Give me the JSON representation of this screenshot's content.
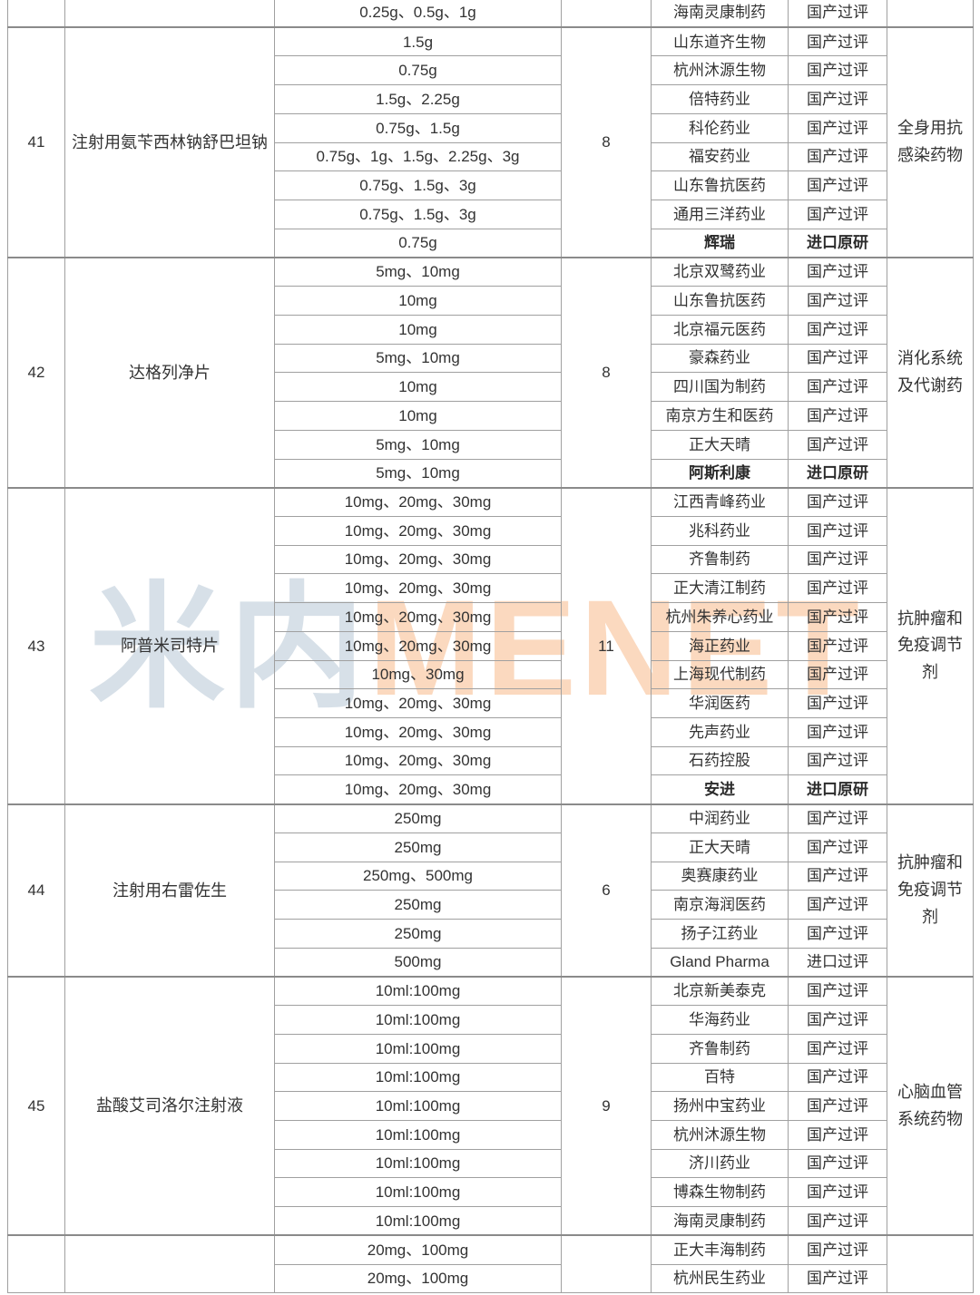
{
  "watermark": {
    "cn": "米内",
    "en": "MENET"
  },
  "colors": {
    "text": "#333333",
    "grid_line": "#a0a0a0",
    "section_line": "#8a8a8a",
    "watermark_cn": "#d7e0e8",
    "watermark_en": "#fbd9bf"
  },
  "chart_data": {
    "type": "table",
    "notes": "Cropped drug evaluation table; header row not visible. Columns: row number, drug name, specification, approved-company count, company, approval type, drug category.",
    "status_values": [
      "国产过评",
      "进口原研",
      "进口过评"
    ],
    "sections": [
      {
        "number": "",
        "drug": "",
        "count": "",
        "category": "",
        "partial": "top",
        "rows": [
          {
            "spec": "0.25g、0.5g、1g",
            "company": "海南灵康制药",
            "status": "国产过评"
          }
        ]
      },
      {
        "number": "41",
        "drug": "注射用氨苄西林钠舒巴坦钠",
        "count": "8",
        "category": "全身用抗感染药物",
        "rows": [
          {
            "spec": "1.5g",
            "company": "山东道齐生物",
            "status": "国产过评"
          },
          {
            "spec": "0.75g",
            "company": "杭州沐源生物",
            "status": "国产过评"
          },
          {
            "spec": "1.5g、2.25g",
            "company": "倍特药业",
            "status": "国产过评"
          },
          {
            "spec": "0.75g、1.5g",
            "company": "科伦药业",
            "status": "国产过评"
          },
          {
            "spec": "0.75g、1g、1.5g、2.25g、3g",
            "company": "福安药业",
            "status": "国产过评"
          },
          {
            "spec": "0.75g、1.5g、3g",
            "company": "山东鲁抗医药",
            "status": "国产过评"
          },
          {
            "spec": "0.75g、1.5g、3g",
            "company": "通用三洋药业",
            "status": "国产过评"
          },
          {
            "spec": "0.75g",
            "company": "辉瑞",
            "status": "进口原研",
            "bold": true
          }
        ]
      },
      {
        "number": "42",
        "drug": "达格列净片",
        "count": "8",
        "category": "消化系统及代谢药",
        "rows": [
          {
            "spec": "5mg、10mg",
            "company": "北京双鹭药业",
            "status": "国产过评"
          },
          {
            "spec": "10mg",
            "company": "山东鲁抗医药",
            "status": "国产过评"
          },
          {
            "spec": "10mg",
            "company": "北京福元医药",
            "status": "国产过评"
          },
          {
            "spec": "5mg、10mg",
            "company": "豪森药业",
            "status": "国产过评"
          },
          {
            "spec": "10mg",
            "company": "四川国为制药",
            "status": "国产过评"
          },
          {
            "spec": "10mg",
            "company": "南京方生和医药",
            "status": "国产过评"
          },
          {
            "spec": "5mg、10mg",
            "company": "正大天晴",
            "status": "国产过评"
          },
          {
            "spec": "5mg、10mg",
            "company": "阿斯利康",
            "status": "进口原研",
            "bold": true
          }
        ]
      },
      {
        "number": "43",
        "drug": "阿普米司特片",
        "count": "11",
        "category": "抗肿瘤和免疫调节剂",
        "rows": [
          {
            "spec": "10mg、20mg、30mg",
            "company": "江西青峰药业",
            "status": "国产过评"
          },
          {
            "spec": "10mg、20mg、30mg",
            "company": "兆科药业",
            "status": "国产过评"
          },
          {
            "spec": "10mg、20mg、30mg",
            "company": "齐鲁制药",
            "status": "国产过评"
          },
          {
            "spec": "10mg、20mg、30mg",
            "company": "正大清江制药",
            "status": "国产过评"
          },
          {
            "spec": "10mg、20mg、30mg",
            "company": "杭州朱养心药业",
            "status": "国产过评"
          },
          {
            "spec": "10mg、20mg、30mg",
            "company": "海正药业",
            "status": "国产过评"
          },
          {
            "spec": "10mg、30mg",
            "company": "上海现代制药",
            "status": "国产过评"
          },
          {
            "spec": "10mg、20mg、30mg",
            "company": "华润医药",
            "status": "国产过评"
          },
          {
            "spec": "10mg、20mg、30mg",
            "company": "先声药业",
            "status": "国产过评"
          },
          {
            "spec": "10mg、20mg、30mg",
            "company": "石药控股",
            "status": "国产过评"
          },
          {
            "spec": "10mg、20mg、30mg",
            "company": "安进",
            "status": "进口原研",
            "bold": true
          }
        ]
      },
      {
        "number": "44",
        "drug": "注射用右雷佐生",
        "count": "6",
        "category": "抗肿瘤和免疫调节剂",
        "rows": [
          {
            "spec": "250mg",
            "company": "中润药业",
            "status": "国产过评"
          },
          {
            "spec": "250mg",
            "company": "正大天晴",
            "status": "国产过评"
          },
          {
            "spec": "250mg、500mg",
            "company": "奥赛康药业",
            "status": "国产过评"
          },
          {
            "spec": "250mg",
            "company": "南京海润医药",
            "status": "国产过评"
          },
          {
            "spec": "250mg",
            "company": "扬子江药业",
            "status": "国产过评"
          },
          {
            "spec": "500mg",
            "company": "Gland Pharma",
            "status": "进口过评"
          }
        ]
      },
      {
        "number": "45",
        "drug": "盐酸艾司洛尔注射液",
        "count": "9",
        "category": "心脑血管系统药物",
        "rows": [
          {
            "spec": "10ml:100mg",
            "company": "北京新美泰克",
            "status": "国产过评"
          },
          {
            "spec": "10ml:100mg",
            "company": "华海药业",
            "status": "国产过评"
          },
          {
            "spec": "10ml:100mg",
            "company": "齐鲁制药",
            "status": "国产过评"
          },
          {
            "spec": "10ml:100mg",
            "company": "百特",
            "status": "国产过评"
          },
          {
            "spec": "10ml:100mg",
            "company": "扬州中宝药业",
            "status": "国产过评"
          },
          {
            "spec": "10ml:100mg",
            "company": "杭州沐源生物",
            "status": "国产过评"
          },
          {
            "spec": "10ml:100mg",
            "company": "济川药业",
            "status": "国产过评"
          },
          {
            "spec": "10ml:100mg",
            "company": "博森生物制药",
            "status": "国产过评"
          },
          {
            "spec": "10ml:100mg",
            "company": "海南灵康制药",
            "status": "国产过评"
          }
        ]
      },
      {
        "number": "",
        "drug": "",
        "count": "",
        "category": "",
        "partial": "bottom",
        "rows": [
          {
            "spec": "20mg、100mg",
            "company": "正大丰海制药",
            "status": "国产过评"
          },
          {
            "spec": "20mg、100mg",
            "company": "杭州民生药业",
            "status": "国产过评"
          }
        ]
      }
    ]
  }
}
